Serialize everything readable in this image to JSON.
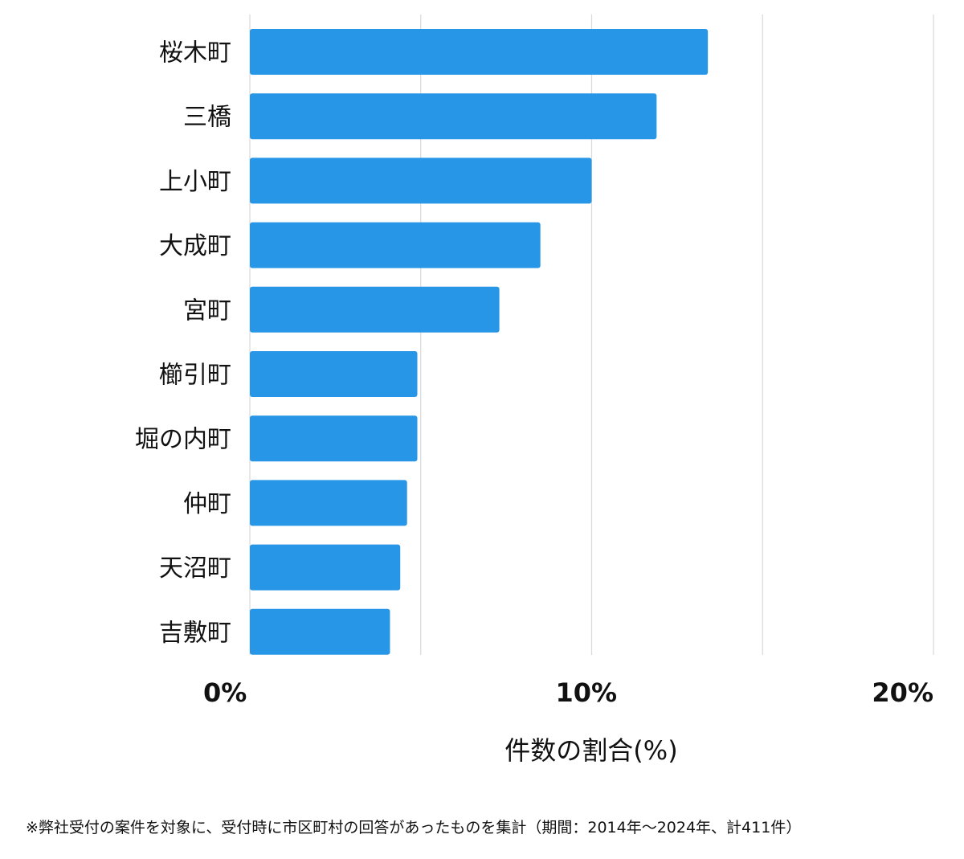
{
  "chart_data": {
    "type": "bar",
    "orientation": "horizontal",
    "categories": [
      "桜木町",
      "三橋",
      "上小町",
      "大成町",
      "宮町",
      "櫛引町",
      "堀の内町",
      "仲町",
      "天沼町",
      "吉敷町"
    ],
    "values": [
      13.4,
      11.9,
      10.0,
      8.5,
      7.3,
      4.9,
      4.9,
      4.6,
      4.4,
      4.1
    ],
    "xlim": [
      0,
      20
    ],
    "x_ticks": [
      0,
      10,
      20
    ],
    "tick_labels": [
      "0%",
      "10%",
      "20%"
    ],
    "xlabel": "件数の割合(%)",
    "ylabel": "",
    "title": "",
    "grid": true,
    "gridlines_at": [
      0,
      5,
      10,
      15,
      20
    ],
    "bar_color": "#2896e6",
    "grid_color": "#d9d9d9"
  },
  "footnote": "※弊社受付の案件を対象に、受付時に市区町村の回答があったものを集計（期間：2014年～2024年、計411件）"
}
